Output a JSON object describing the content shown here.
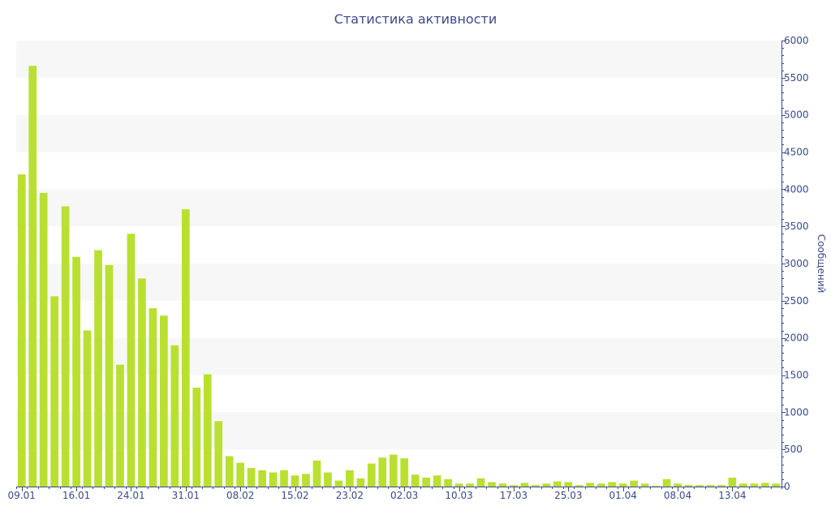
{
  "chart_data": {
    "type": "bar",
    "title": "Статистика активности",
    "xlabel": "",
    "ylabel": "Сообщений",
    "ylim": [
      0,
      6000
    ],
    "yticks": [
      0,
      500,
      1000,
      1500,
      2000,
      2500,
      3000,
      3500,
      4000,
      4500,
      5000,
      5500,
      6000
    ],
    "xtick_labels": [
      "09.01",
      "16.01",
      "24.01",
      "31.01",
      "08.02",
      "15.02",
      "23.02",
      "02.03",
      "10.03",
      "17.03",
      "25.03",
      "01.04",
      "08.04",
      "13.04"
    ],
    "xtick_bar_index": [
      0,
      5,
      10,
      15,
      20,
      25,
      30,
      35,
      40,
      45,
      50,
      55,
      60,
      65
    ],
    "grid": "alternating horizontal bands",
    "y_axis_side": "right",
    "bar_color": "#b9e030",
    "values": [
      4200,
      5660,
      3950,
      2560,
      3770,
      3090,
      2100,
      3180,
      2980,
      1640,
      3400,
      2800,
      2400,
      2300,
      1900,
      3730,
      1330,
      1510,
      880,
      410,
      320,
      250,
      220,
      190,
      220,
      150,
      170,
      350,
      190,
      80,
      220,
      110,
      310,
      390,
      430,
      380,
      160,
      120,
      150,
      100,
      40,
      40,
      110,
      60,
      40,
      20,
      50,
      20,
      40,
      70,
      60,
      20,
      50,
      40,
      60,
      40,
      80,
      40,
      10,
      100,
      40,
      20,
      20,
      20,
      20,
      120,
      40,
      40,
      50,
      40
    ]
  }
}
